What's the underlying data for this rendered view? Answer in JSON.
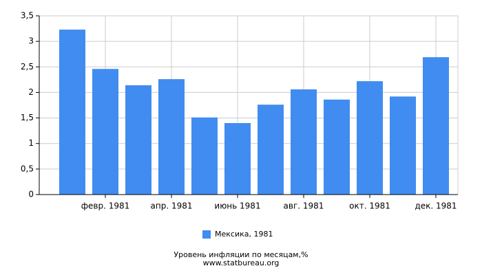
{
  "chart_data": {
    "type": "bar",
    "title": "Уровень инфляции по месяцам,%",
    "source": "www.statbureau.org",
    "categories": [
      null,
      "февр. 1981",
      null,
      "апр. 1981",
      null,
      "июнь 1981",
      null,
      "авг. 1981",
      null,
      "окт. 1981",
      null,
      "дек. 1981"
    ],
    "series": [
      {
        "name": "Мексика, 1981",
        "color": "#418cf0",
        "values": [
          3.23,
          2.46,
          2.14,
          2.26,
          1.51,
          1.4,
          1.76,
          2.06,
          1.86,
          2.22,
          1.92,
          2.69
        ]
      }
    ],
    "ylim": [
      0,
      3.5
    ],
    "yticks": [
      0,
      {
        "value": 0.5,
        "label": "0,5"
      },
      1,
      {
        "value": 1.5,
        "label": "1,5"
      },
      2,
      {
        "value": 2.5,
        "label": "2,5"
      },
      3,
      {
        "value": 3.5,
        "label": "3,5"
      }
    ],
    "grid": true
  }
}
